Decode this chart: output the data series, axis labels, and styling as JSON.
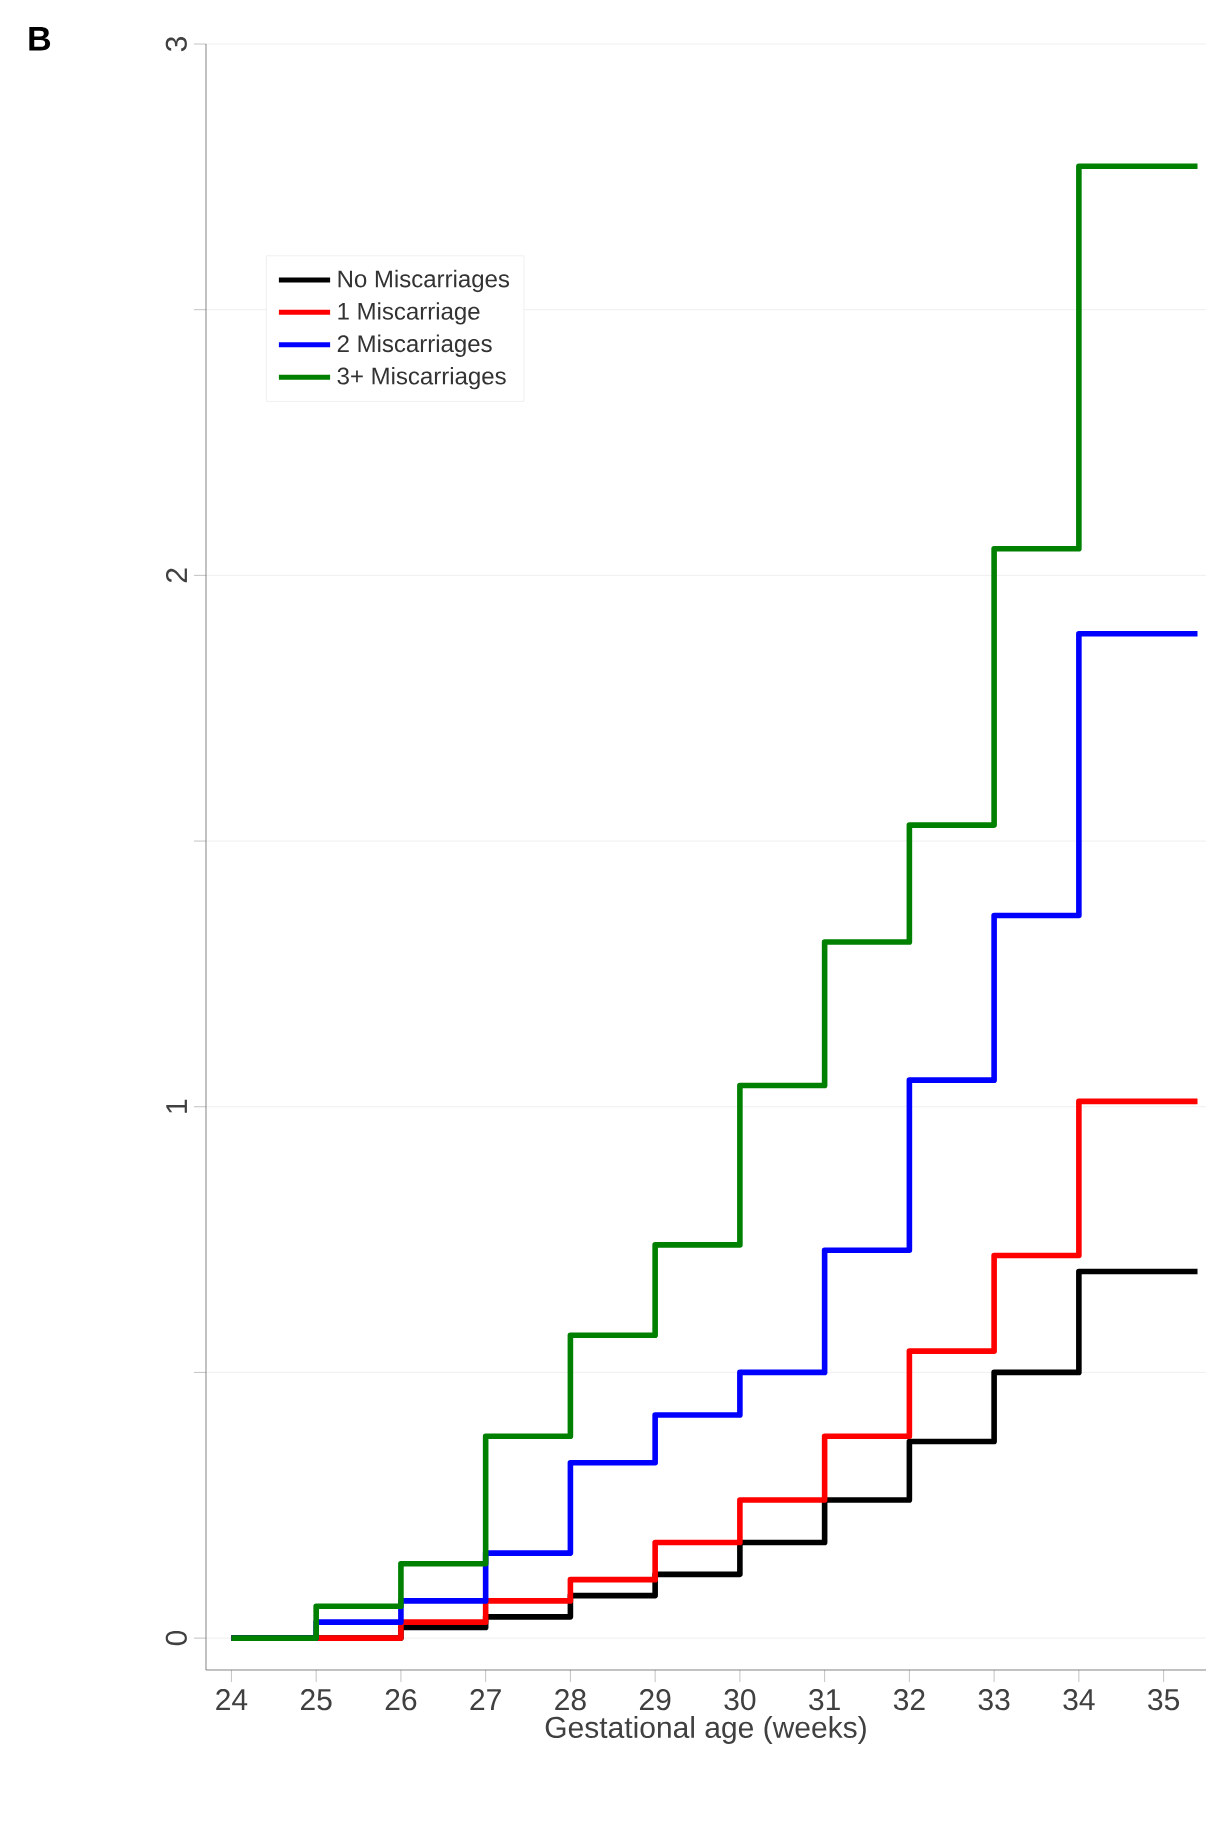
{
  "chart_data": {
    "type": "step",
    "xlabel": "Gestational age (weeks)",
    "annotations": [
      "B"
    ],
    "x": [
      24,
      25,
      26,
      27,
      28,
      29,
      30,
      31,
      32,
      33,
      34,
      35.4
    ],
    "series": [
      {
        "name": "No Miscarriages",
        "color": "#000000",
        "values": [
          0,
          0,
          0.02,
          0.04,
          0.08,
          0.12,
          0.18,
          0.26,
          0.37,
          0.5,
          0.69,
          0.69
        ]
      },
      {
        "name": "1 Miscarriage",
        "color": "#ff0000",
        "values": [
          0,
          0,
          0.03,
          0.07,
          0.11,
          0.18,
          0.26,
          0.38,
          0.54,
          0.72,
          1.01,
          1.01
        ]
      },
      {
        "name": "2 Miscarriages",
        "color": "#0000ff",
        "values": [
          0,
          0.03,
          0.07,
          0.16,
          0.33,
          0.42,
          0.5,
          0.73,
          1.05,
          1.36,
          1.89,
          1.89
        ]
      },
      {
        "name": "3+ Miscarriages",
        "color": "#008000",
        "values": [
          0,
          0.06,
          0.14,
          0.38,
          0.57,
          0.74,
          1.04,
          1.31,
          1.53,
          2.05,
          2.77,
          2.77
        ]
      }
    ],
    "xlim": [
      23.7,
      35.5
    ],
    "ylim": [
      -0.06,
      3.0
    ],
    "xticks": [
      24,
      25,
      26,
      27,
      28,
      29,
      30,
      31,
      32,
      33,
      34,
      35
    ],
    "yticks": [
      0,
      {
        "value": 0.5,
        "label": null
      },
      1,
      {
        "value": 1.5,
        "label": null
      },
      2,
      {
        "value": 2.5,
        "label": null
      },
      3
    ],
    "grid": "y",
    "legend": "top left",
    "line_style": "solid",
    "marker": "none"
  }
}
